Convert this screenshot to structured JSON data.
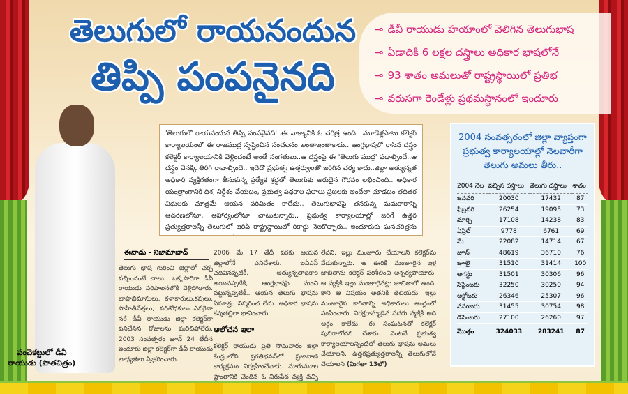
{
  "headline": {
    "line1": "తెలుగులో రాయనందున",
    "line2": "తిప్పి పంపనైనది"
  },
  "highlights": [
    "డీవీ రాయుడు హయాంలో వెలిగిన తెలుగుభాష",
    "ఏడాదికి 6 లక్షల దస్త్రాలు అధికార భాషలోనే",
    "93 శాతం అమలుతో రాష్ట్రస్థాయిలో ప్రతిభ",
    "వరుసగా రెండేళ్లు ప్రథమస్థానంలో ఇందూరు"
  ],
  "highlight_icon": "arrow-bullet-icon",
  "intro": "'తెలుగులో రాయనందున తిప్పి పంపనైనది'..ఈ వాక్యానికి ఓ చరిత్ర ఉంది.. మూడేళ్లపాటు కలెక్టర్ కార్యాలయంలో ఈ రాజముద్ర సృష్టించిన సంచలనం అంతాఇంతాకాదు.. ఆంగ్లభాషలో రాసిన దస్త్రం కలెక్టర్ కార్యాలయానికి వెళ్లిందంటే అంతే సంగతులు..ఆ దస్త్రంపై ఈ 'తెలుగు ముద్ర' పడాల్సిందే..ఆ దస్త్రం వెనక్కి తిరిగి రావాల్సిందే.. ఇదేదో ప్రభుత్వ ఉత్తర్వులతో జరిగిన చర్య కాదు..జిల్లా అత్యున్నత అధికారి వ్యక్తిగతంగా తీసుకున్న ప్రత్యేక శ్రద్ధతో తెలుగుకు అరుదైన గౌరవం లభించింది.. అధికార యంత్రాంగానికి దిశ, నిర్దేశం చేయటం, ప్రభుత్వ పథకాల ఫలాలు ప్రజలకు అందేలా చూడటం తదితర విధులకు మాత్రమే ఆయన పరిమితం కాలేదు.. తెలుగుభాషపై తనకున్న మమకారాన్ని ఆచరణలోనూ, ఆహార్యంలోనూ చాటుకున్నారు.. ప్రభుత్వ కార్యాలయాల్లో జరిగే ఉత్తర ప్రత్యుత్తరాలన్నీ తెలుగులో జరిపి రాష్ట్రస్థాయిలో రికార్డు నెలకొల్పారు.. ఇందూరుకు ఘనచరిత్రను సాధించిపెట్టారు.. ఆయనే డీవీ రాయుడు.. ఒకనాటి జిల్లా కలెక్టర్.",
  "photo_caption": "పంచెకట్టులో డీవీ రాయుడు (పాతచిత్రం)",
  "byline": "ఈనాడు - నిజామాబాద్",
  "columns": {
    "col1": "తెలుగు భాష గురించి జిల్లాలో చర్చ వచ్చిందంటే చాలు.. ఒక్కసారిగా డీవీ రాయుడు పరిపాలనలోకి వెళ్లిపోతారు. భాషాభిమానులు, కళాకారులు,కవులు, సాహితీవేత్తలు, పరిశోధకులు..ఎవరైనా సరే డీవీ రాయుడు జిల్లా కలెక్టర్‌గా పనిచేసిన రోజులను మరిచిపోలేరు. 2003 సంవత్సరం జూన్ 24 తేదీన ఇందూరు జిల్లా కలెక్టర్‌గా డీవీ రాయుడు బాధ్యతలు స్వీకరించారు.",
    "col2": "2006 మే 17 తేదీ వరకు ఆయన జిల్లాలోనే పనిచేశారు. ఐఏఎస్ చదివినప్పటికీ, అత్యున్నతాధికారి అయినప్పటికీ, ఆంగ్లభాషపై మంచి పట్టున్నప్పటికీ.. ఆయన తెలుగు భాషను ఏమాత్రం విస్మరించ లేదు. అధికార భాషను కన్నతల్లిలా భావించారు.",
    "subhead": "ఆలోచన ఇలా",
    "col2b": "కలెక్టర్ రాయుడు ప్రతి సోమవారం జిల్లా కేంద్రంలోని ప్రగతిభవన్‌లో ప్రజావాణి కార్యక్రమం నిర్వహించేవారు. మారుమూల ప్రాంతానికి చెందిన ఓ నిరుపేద వ్యక్తి వచ్చి తనకు నిలువ నీడ",
    "col3": "లేదని, ఇల్లు మంజూరు చేయాలని కలెక్టర్‌ను వేడుకున్నారు. ఆ ఊరికి మంజూరైన ఇళ్ల జాబితాను కలెక్టర్ పరిశీలించి ఆశ్చర్యపోయారు. ఆ వ్యక్తికి ఇల్లు మంజూరైనట్లు జాబితాలో ఉంది. కాని ఆ విషయం అతనికి తెలియదు. ఇల్లు మంజూరైన కాగితాన్ని అధికారులు ఆంగ్లంలో పంపించారు. నిరక్షరాస్యుడైన సదరు వ్యక్తికి అది అర్థం కాలేదు. ఈ సంఘటనతో కలెక్టర్ పునరాలోచన చేశారు. వెంటనే ప్రభుత్వ కార్యాలయాలన్నింటిలో తెలుగు భాషను అమలు చేయాలని, ఉత్తరప్రత్యుత్తరాలన్నీ తెలుగులోనే చేయాలని",
    "continued": "(మిగతా 13లో)"
  },
  "table": {
    "title": "2004 సంవత్సరంలో జిల్లా వ్యాప్తంగా ప్రభుత్వ కార్యాలయాల్లో నెలవారీగా తెలుగు అమలు తీరు..",
    "headers": [
      "2004 నెల",
      "వచ్చిన దస్త్రాలు",
      "తెలుగు దస్త్రాలు",
      "శాతం"
    ],
    "rows": [
      [
        "జనవరి",
        "20030",
        "17432",
        "87"
      ],
      [
        "ఫిబ్రవరి",
        "26254",
        "19095",
        "73"
      ],
      [
        "మార్చి",
        "17108",
        "14238",
        "83"
      ],
      [
        "ఏప్రిల్",
        "9778",
        "6761",
        "69"
      ],
      [
        "మే",
        "22082",
        "14714",
        "67"
      ],
      [
        "జూన్",
        "48619",
        "36710",
        "76"
      ],
      [
        "జూలై",
        "31510",
        "31414",
        "100"
      ],
      [
        "ఆగస్టు",
        "31501",
        "30306",
        "96"
      ],
      [
        "సెప్టెంబరు",
        "32250",
        "30250",
        "94"
      ],
      [
        "అక్టోబరు",
        "26346",
        "25307",
        "96"
      ],
      [
        "నవంబరు",
        "31455",
        "30754",
        "98"
      ],
      [
        "డిసెంబరు",
        "27100",
        "26260",
        "97"
      ]
    ],
    "total": [
      "మొత్తం",
      "324033",
      "283241",
      "87"
    ]
  },
  "colors": {
    "headline": "#1d5fae",
    "highlights": "#d4247e",
    "table_bg": "#e6f1f8",
    "curtain": "#c41c22"
  }
}
